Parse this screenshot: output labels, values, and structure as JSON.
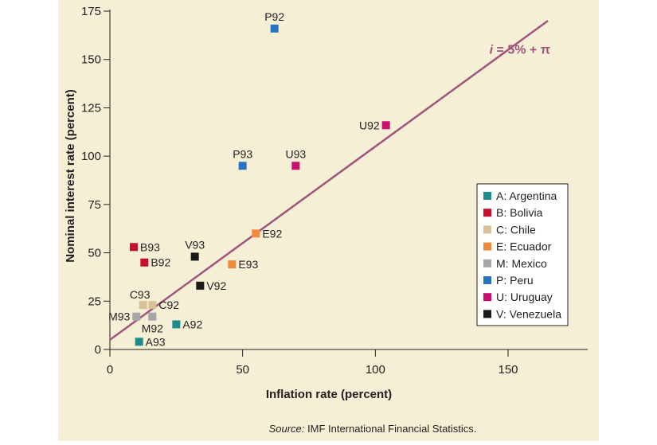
{
  "colors": {
    "background": "#f5efd5",
    "axis": "#231f20",
    "fit_line": "#a0547e",
    "Argentina": "#1e8c8c",
    "Bolivia": "#c8102e",
    "Chile": "#d9c29a",
    "Ecuador": "#f08a3c",
    "Mexico": "#a6a6a6",
    "Peru": "#2a73c0",
    "Uruguay": "#c8106e",
    "Venezuela": "#1a1a1a"
  },
  "source": {
    "prefix": "Source:",
    "text": " IMF International Financial Statistics."
  },
  "chart_data": {
    "type": "scatter",
    "xlabel": "Inflation rate (percent)",
    "ylabel": "Nominal interest rate (percent)",
    "xlim": [
      0,
      180
    ],
    "ylim": [
      0,
      175
    ],
    "xticks": [
      0,
      50,
      100,
      150
    ],
    "yticks": [
      0,
      25,
      50,
      75,
      100,
      125,
      150,
      175
    ],
    "grid": false,
    "legend_position": "right",
    "fit_line": {
      "label": "i = 5% + π",
      "label_italic": "i",
      "label_rest": " = 5% + π",
      "intercept": 5,
      "slope": 1,
      "x_range": [
        0,
        165
      ]
    },
    "legend": [
      {
        "key": "Argentina",
        "text": "A: Argentina"
      },
      {
        "key": "Bolivia",
        "text": "B: Bolivia"
      },
      {
        "key": "Chile",
        "text": "C: Chile"
      },
      {
        "key": "Ecuador",
        "text": "E: Ecuador"
      },
      {
        "key": "Mexico",
        "text": "M: Mexico"
      },
      {
        "key": "Peru",
        "text": "P: Peru"
      },
      {
        "key": "Uruguay",
        "text": "U: Uruguay"
      },
      {
        "key": "Venezuela",
        "text": "V: Venezuela"
      }
    ],
    "points": [
      {
        "label": "P92",
        "country": "Peru",
        "x": 62,
        "y": 166,
        "anchor": "above"
      },
      {
        "label": "U92",
        "country": "Uruguay",
        "x": 104,
        "y": 116,
        "anchor": "left"
      },
      {
        "label": "P93",
        "country": "Peru",
        "x": 50,
        "y": 95,
        "anchor": "above"
      },
      {
        "label": "U93",
        "country": "Uruguay",
        "x": 70,
        "y": 95,
        "anchor": "above"
      },
      {
        "label": "E92",
        "country": "Ecuador",
        "x": 55,
        "y": 60,
        "anchor": "right"
      },
      {
        "label": "B93",
        "country": "Bolivia",
        "x": 9,
        "y": 53,
        "anchor": "right"
      },
      {
        "label": "V93",
        "country": "Venezuela",
        "x": 32,
        "y": 48,
        "anchor": "above"
      },
      {
        "label": "B92",
        "country": "Bolivia",
        "x": 13,
        "y": 45,
        "anchor": "right"
      },
      {
        "label": "E93",
        "country": "Ecuador",
        "x": 46,
        "y": 44,
        "anchor": "right"
      },
      {
        "label": "V92",
        "country": "Venezuela",
        "x": 34,
        "y": 33,
        "anchor": "right"
      },
      {
        "label": "C93",
        "country": "Chile",
        "x": 12.5,
        "y": 23,
        "anchor": "above-left"
      },
      {
        "label": "C92",
        "country": "Chile",
        "x": 16,
        "y": 23,
        "anchor": "right"
      },
      {
        "label": "M93",
        "country": "Mexico",
        "x": 10,
        "y": 17,
        "anchor": "left"
      },
      {
        "label": "M92",
        "country": "Mexico",
        "x": 16,
        "y": 17,
        "anchor": "below"
      },
      {
        "label": "A92",
        "country": "Argentina",
        "x": 25,
        "y": 13,
        "anchor": "right"
      },
      {
        "label": "A93",
        "country": "Argentina",
        "x": 11,
        "y": 4,
        "anchor": "right"
      }
    ]
  }
}
